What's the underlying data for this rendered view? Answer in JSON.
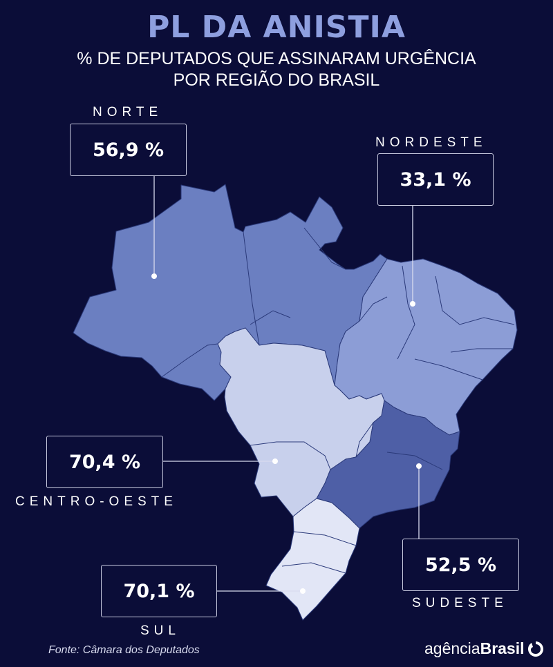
{
  "header": {
    "title": "PL DA ANISTIA",
    "subtitle_line1": "% DE DEPUTADOS QUE ASSINARAM URGÊNCIA",
    "subtitle_line2": "POR REGIÃO DO BRASIL"
  },
  "regions": {
    "norte": {
      "label": "NORTE",
      "value_text": "56,9 %",
      "value": 56.9,
      "color": "#6b7fc1"
    },
    "nordeste": {
      "label": "NORDESTE",
      "value_text": "33,1 %",
      "value": 33.1,
      "color": "#8c9dd6"
    },
    "centro_oeste": {
      "label": "CENTRO-OESTE",
      "value_text": "70,4 %",
      "value": 70.4,
      "color": "#c8d0ec"
    },
    "sudeste": {
      "label": "SUDESTE",
      "value_text": "52,5 %",
      "value": 52.5,
      "color": "#4e5fa6"
    },
    "sul": {
      "label": "SUL",
      "value_text": "70,1 %",
      "value": 70.1,
      "color": "#e2e6f6"
    }
  },
  "footer": {
    "source": "Fonte: Câmara dos Deputados",
    "brand_light": "agência",
    "brand_bold": "Brasil"
  },
  "colors": {
    "background": "#0b0d38",
    "title": "#8e9fdf",
    "box_border": "#c9cbe0"
  }
}
